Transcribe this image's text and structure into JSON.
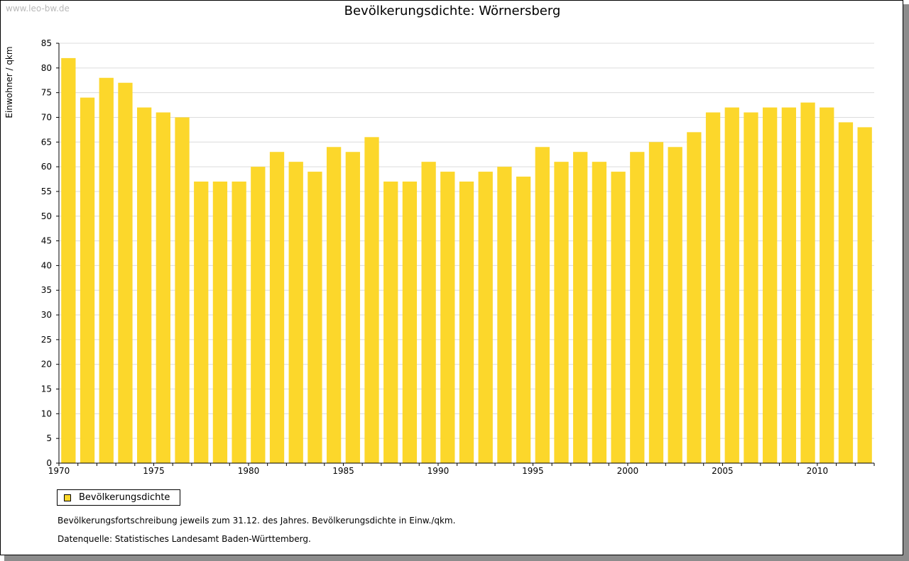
{
  "watermark": "www.leo-bw.de",
  "colors": {
    "bar": "#FCD72B",
    "grid": "#dcdcdc",
    "axis": "#000000"
  },
  "legend": {
    "label": "Bevölkerungsdichte"
  },
  "notes": [
    "Bevölkerungsfortschreibung jeweils zum 31.12. des Jahres. Bevölkerungsdichte in Einw./qkm.",
    "Datenquelle: Statistisches Landesamt Baden-Württemberg."
  ],
  "chart_data": {
    "type": "bar",
    "title": "Bevölkerungsdichte: Wörnersberg",
    "ylabel": "Einwohner / qkm",
    "xlabel": "",
    "ylim": [
      0,
      85
    ],
    "yticks": [
      0,
      5,
      10,
      15,
      20,
      25,
      30,
      35,
      40,
      45,
      50,
      55,
      60,
      65,
      70,
      75,
      80,
      85
    ],
    "xtick_labels": [
      "1970",
      "1975",
      "1980",
      "1985",
      "1990",
      "1995",
      "2000",
      "2005",
      "2010"
    ],
    "grid": true,
    "legend_position": "bottom-left",
    "categories": [
      1970,
      1971,
      1972,
      1973,
      1974,
      1975,
      1976,
      1977,
      1978,
      1979,
      1980,
      1981,
      1982,
      1983,
      1984,
      1985,
      1986,
      1987,
      1988,
      1989,
      1990,
      1991,
      1992,
      1993,
      1994,
      1995,
      1996,
      1997,
      1998,
      1999,
      2000,
      2001,
      2002,
      2003,
      2004,
      2005,
      2006,
      2007,
      2008,
      2009,
      2010,
      2011,
      2012
    ],
    "series": [
      {
        "name": "Bevölkerungsdichte",
        "values": [
          82,
          74,
          78,
          77,
          72,
          71,
          70,
          57,
          57,
          57,
          60,
          63,
          61,
          59,
          64,
          63,
          66,
          57,
          57,
          61,
          59,
          57,
          59,
          60,
          58,
          64,
          61,
          63,
          61,
          59,
          63,
          65,
          64,
          67,
          71,
          72,
          71,
          72,
          72,
          73,
          72,
          69,
          68
        ]
      }
    ]
  }
}
